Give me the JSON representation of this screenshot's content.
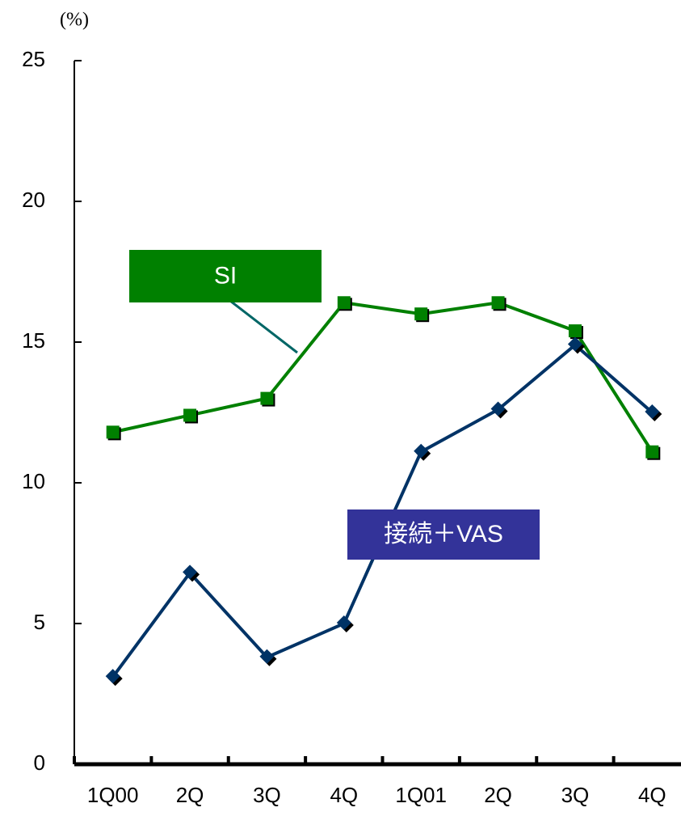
{
  "chart_data": {
    "type": "line",
    "unit_label": "(%)",
    "categories": [
      "1Q00",
      "2Q",
      "3Q",
      "4Q",
      "1Q01",
      "2Q",
      "3Q",
      "4Q"
    ],
    "series": [
      {
        "name": "SI",
        "color": "#008000",
        "label_color": "#008000",
        "values": [
          11.8,
          12.4,
          13.0,
          16.4,
          16.0,
          16.4,
          15.4,
          11.1
        ]
      },
      {
        "name": "接続＋VAS",
        "color": "#003366",
        "label_color": "#333399",
        "values": [
          3.1,
          6.8,
          3.8,
          5.0,
          11.1,
          12.6,
          14.9,
          12.5
        ]
      }
    ],
    "ylim": [
      0,
      25
    ],
    "yticks": [
      0,
      5,
      10,
      15,
      20,
      25
    ],
    "grid": false
  }
}
